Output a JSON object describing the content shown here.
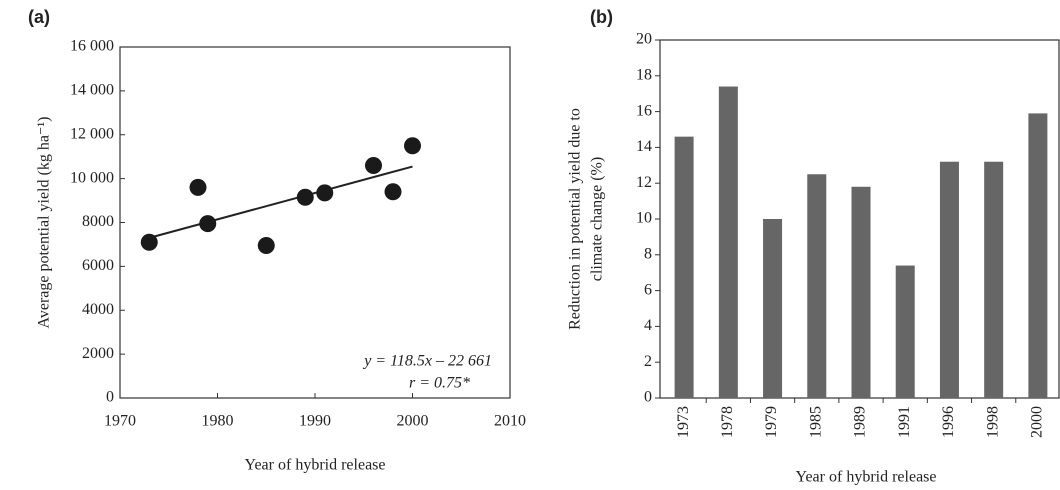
{
  "chart_data": [
    {
      "type": "scatter",
      "panel_label": "(a)",
      "x_label": "Year of hybrid release",
      "y_label": "Average potential yield (kg ha⁻¹)",
      "x": [
        1973,
        1978,
        1979,
        1985,
        1989,
        1991,
        1996,
        1998,
        2000
      ],
      "values": [
        7100,
        9600,
        7950,
        6950,
        9150,
        9350,
        10600,
        9400,
        11500
      ],
      "color": "#1a1a1a",
      "trendline": {
        "x": [
          1973,
          2000
        ],
        "y": [
          7300,
          10550
        ]
      },
      "annotations": [
        "y = 118.5x – 22 661",
        "r = 0.75*"
      ],
      "xlim": [
        1970,
        2010
      ],
      "xticks": [
        1970,
        1980,
        1990,
        2000,
        2010
      ],
      "ylim": [
        0,
        16000
      ],
      "yticks": [
        0,
        2000,
        4000,
        6000,
        8000,
        {
          "value": 10000,
          "label": "10 000"
        },
        {
          "value": 12000,
          "label": "12 000"
        },
        {
          "value": 14000,
          "label": "14 000"
        },
        {
          "value": 16000,
          "label": "16 000"
        }
      ]
    },
    {
      "type": "bar",
      "panel_label": "(b)",
      "x_label": "Year of hybrid release",
      "y_label": [
        "Reduction in potential yield due to",
        "climate change (%)"
      ],
      "categories": [
        "1973",
        "1978",
        "1979",
        "1985",
        "1989",
        "1991",
        "1996",
        "1998",
        "2000"
      ],
      "values": [
        14.6,
        17.4,
        10.0,
        12.5,
        11.8,
        7.4,
        13.2,
        13.2,
        15.9
      ],
      "color": "#666666",
      "ylim": [
        0,
        20
      ],
      "yticks": [
        0,
        2,
        4,
        6,
        8,
        10,
        12,
        14,
        16,
        18,
        20
      ]
    }
  ]
}
